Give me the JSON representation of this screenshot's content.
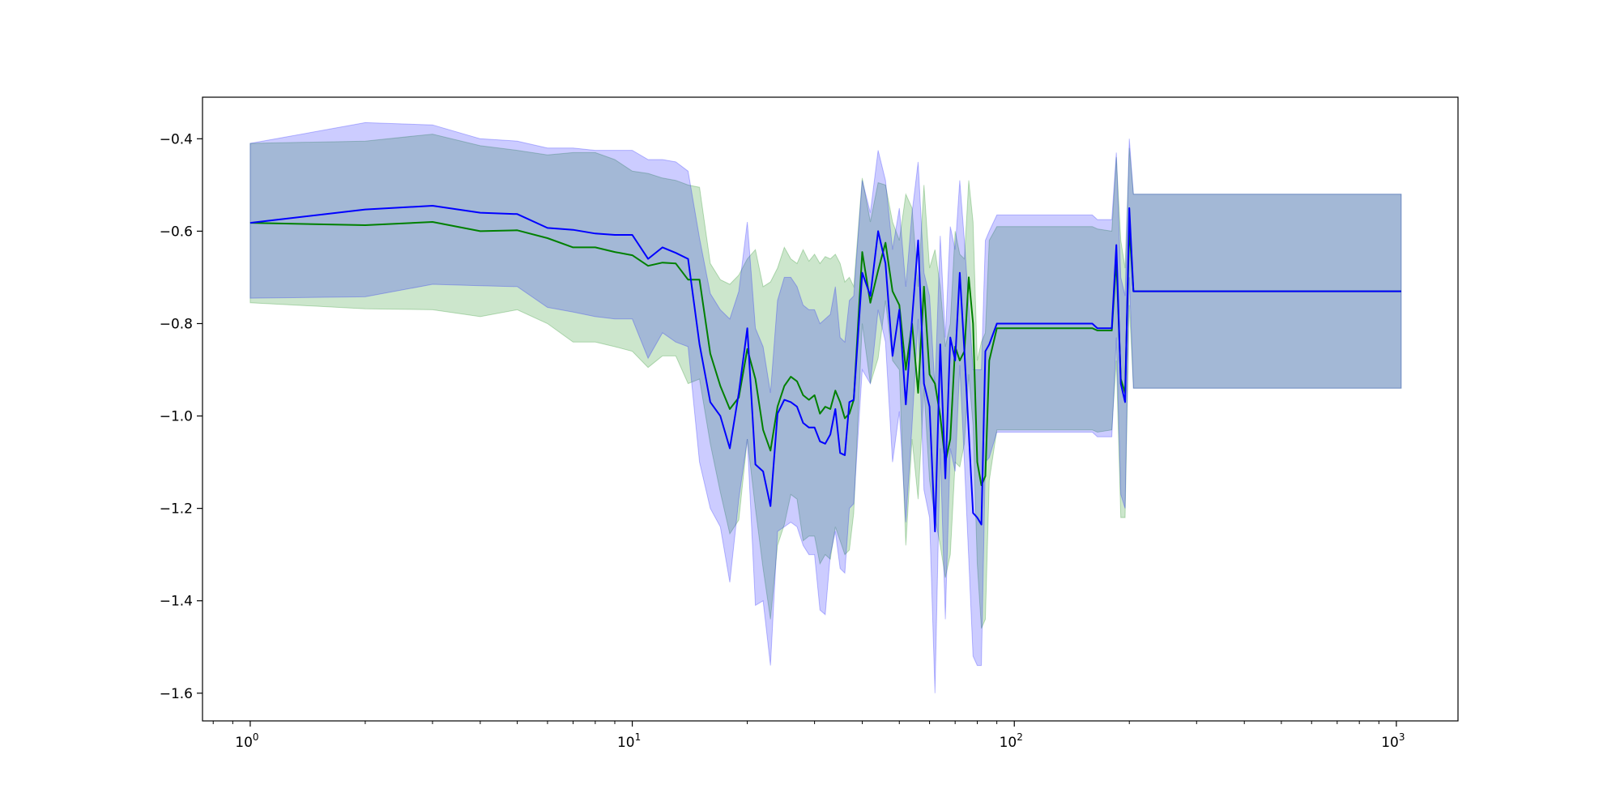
{
  "chart_data": {
    "type": "line",
    "title": "",
    "xlabel": "",
    "ylabel": "",
    "x_scale": "log",
    "xlim": [
      0.75,
      1450
    ],
    "ylim": [
      -1.66,
      -0.31
    ],
    "grid": false,
    "legend": "none",
    "x_ticks": [
      {
        "value": 1,
        "base": "10",
        "exp": "0"
      },
      {
        "value": 10,
        "base": "10",
        "exp": "1"
      },
      {
        "value": 100,
        "base": "10",
        "exp": "2"
      },
      {
        "value": 1000,
        "base": "10",
        "exp": "3"
      }
    ],
    "y_ticks": [
      {
        "value": -0.4,
        "label": "−0.4"
      },
      {
        "value": -0.6,
        "label": "−0.6"
      },
      {
        "value": -0.8,
        "label": "−0.8"
      },
      {
        "value": -1.0,
        "label": "−1.0"
      },
      {
        "value": -1.2,
        "label": "−1.2"
      },
      {
        "value": -1.4,
        "label": "−1.4"
      },
      {
        "value": -1.6,
        "label": "−1.6"
      }
    ],
    "series": [
      {
        "color": "#008000",
        "band_color": "#008000",
        "band_opacity": 0.2,
        "x": [
          1,
          2,
          3,
          4,
          5,
          6,
          7,
          8,
          9,
          10,
          11,
          12,
          13,
          14,
          15,
          16,
          17,
          18,
          19,
          20,
          21,
          22,
          23,
          24,
          25,
          26,
          27,
          28,
          29,
          30,
          31,
          32,
          33,
          34,
          35,
          36,
          37,
          38,
          40,
          42,
          44,
          46,
          48,
          50,
          52,
          54,
          56,
          58,
          60,
          62,
          64,
          66,
          68,
          70,
          72,
          74,
          76,
          78,
          80,
          82,
          84,
          86,
          90,
          100,
          120,
          150,
          160,
          165,
          180,
          185,
          190,
          195,
          200,
          205,
          300,
          500,
          1030
        ],
        "y": [
          -0.582,
          -0.587,
          -0.58,
          -0.6,
          -0.598,
          -0.615,
          -0.635,
          -0.635,
          -0.645,
          -0.652,
          -0.675,
          -0.668,
          -0.67,
          -0.705,
          -0.705,
          -0.865,
          -0.935,
          -0.985,
          -0.96,
          -0.855,
          -0.92,
          -1.03,
          -1.075,
          -0.98,
          -0.935,
          -0.915,
          -0.925,
          -0.955,
          -0.965,
          -0.955,
          -0.995,
          -0.98,
          -0.985,
          -0.945,
          -0.97,
          -1.005,
          -0.995,
          -0.965,
          -0.645,
          -0.755,
          -0.685,
          -0.625,
          -0.73,
          -0.76,
          -0.9,
          -0.8,
          -0.95,
          -0.72,
          -0.91,
          -0.93,
          -1.0,
          -1.1,
          -1.05,
          -0.85,
          -0.88,
          -0.86,
          -0.7,
          -0.8,
          -1.1,
          -1.15,
          -1.13,
          -0.88,
          -0.81,
          -0.81,
          -0.81,
          -0.81,
          -0.81,
          -0.815,
          -0.815,
          -0.66,
          -0.92,
          -0.95,
          -0.59,
          -0.73,
          -0.73,
          -0.73,
          -0.73
        ],
        "upper": [
          -0.41,
          -0.405,
          -0.39,
          -0.415,
          -0.425,
          -0.435,
          -0.43,
          -0.43,
          -0.445,
          -0.47,
          -0.475,
          -0.485,
          -0.49,
          -0.5,
          -0.505,
          -0.67,
          -0.705,
          -0.715,
          -0.695,
          -0.66,
          -0.64,
          -0.72,
          -0.71,
          -0.68,
          -0.635,
          -0.66,
          -0.67,
          -0.64,
          -0.665,
          -0.65,
          -0.67,
          -0.655,
          -0.66,
          -0.65,
          -0.67,
          -0.71,
          -0.7,
          -0.72,
          -0.485,
          -0.58,
          -0.495,
          -0.5,
          -0.58,
          -0.62,
          -0.52,
          -0.55,
          -0.72,
          -0.5,
          -0.68,
          -0.64,
          -0.72,
          -0.85,
          -0.8,
          -0.6,
          -0.65,
          -0.66,
          -0.49,
          -0.58,
          -0.88,
          -0.84,
          -0.82,
          -0.62,
          -0.59,
          -0.59,
          -0.59,
          -0.59,
          -0.59,
          -0.595,
          -0.6,
          -0.44,
          -0.62,
          -0.68,
          -0.42,
          -0.52,
          -0.52,
          -0.52,
          -0.52
        ],
        "lower": [
          -0.755,
          -0.768,
          -0.77,
          -0.785,
          -0.77,
          -0.8,
          -0.84,
          -0.84,
          -0.85,
          -0.86,
          -0.895,
          -0.87,
          -0.87,
          -0.93,
          -0.92,
          -1.06,
          -1.165,
          -1.255,
          -1.225,
          -1.05,
          -1.2,
          -1.33,
          -1.44,
          -1.28,
          -1.235,
          -1.17,
          -1.18,
          -1.27,
          -1.26,
          -1.26,
          -1.32,
          -1.3,
          -1.31,
          -1.24,
          -1.27,
          -1.3,
          -1.29,
          -1.21,
          -0.8,
          -0.93,
          -0.875,
          -0.75,
          -0.88,
          -0.9,
          -1.28,
          -1.05,
          -1.18,
          -0.94,
          -1.14,
          -1.22,
          -1.28,
          -1.35,
          -1.3,
          -1.1,
          -1.11,
          -1.06,
          -0.91,
          -1.02,
          -1.32,
          -1.46,
          -1.44,
          -1.14,
          -1.03,
          -1.03,
          -1.03,
          -1.03,
          -1.03,
          -1.035,
          -1.03,
          -0.88,
          -1.22,
          -1.22,
          -0.76,
          -0.94,
          -0.94,
          -0.94,
          -0.94
        ]
      },
      {
        "color": "#0000ff",
        "band_color": "#0000ff",
        "band_opacity": 0.2,
        "x": [
          1,
          2,
          3,
          4,
          5,
          6,
          7,
          8,
          9,
          10,
          11,
          12,
          13,
          14,
          15,
          16,
          17,
          18,
          19,
          20,
          21,
          22,
          23,
          24,
          25,
          26,
          27,
          28,
          29,
          30,
          31,
          32,
          33,
          34,
          35,
          36,
          37,
          38,
          40,
          42,
          44,
          46,
          48,
          50,
          52,
          54,
          56,
          58,
          60,
          62,
          64,
          66,
          68,
          70,
          72,
          74,
          76,
          78,
          80,
          82,
          84,
          86,
          90,
          100,
          120,
          150,
          160,
          165,
          180,
          185,
          190,
          195,
          200,
          205,
          300,
          500,
          1030
        ],
        "y": [
          -0.582,
          -0.553,
          -0.545,
          -0.56,
          -0.563,
          -0.593,
          -0.597,
          -0.605,
          -0.608,
          -0.608,
          -0.66,
          -0.635,
          -0.647,
          -0.66,
          -0.845,
          -0.97,
          -1.0,
          -1.07,
          -0.95,
          -0.81,
          -1.105,
          -1.12,
          -1.195,
          -0.995,
          -0.965,
          -0.97,
          -0.98,
          -1.015,
          -1.025,
          -1.025,
          -1.055,
          -1.06,
          -1.04,
          -0.985,
          -1.08,
          -1.085,
          -0.97,
          -0.965,
          -0.69,
          -0.74,
          -0.6,
          -0.67,
          -0.87,
          -0.77,
          -0.975,
          -0.79,
          -0.62,
          -0.93,
          -0.98,
          -1.25,
          -0.845,
          -1.135,
          -0.83,
          -0.88,
          -0.69,
          -0.86,
          -1.035,
          -1.21,
          -1.22,
          -1.235,
          -0.86,
          -0.845,
          -0.8,
          -0.8,
          -0.8,
          -0.8,
          -0.8,
          -0.81,
          -0.81,
          -0.63,
          -0.93,
          -0.97,
          -0.55,
          -0.73,
          -0.73,
          -0.73,
          -0.73
        ],
        "upper": [
          -0.41,
          -0.365,
          -0.37,
          -0.4,
          -0.405,
          -0.42,
          -0.42,
          -0.425,
          -0.425,
          -0.425,
          -0.445,
          -0.445,
          -0.45,
          -0.47,
          -0.615,
          -0.735,
          -0.77,
          -0.79,
          -0.73,
          -0.58,
          -0.81,
          -0.85,
          -0.95,
          -0.75,
          -0.7,
          -0.7,
          -0.72,
          -0.76,
          -0.77,
          -0.77,
          -0.8,
          -0.79,
          -0.78,
          -0.72,
          -0.83,
          -0.84,
          -0.75,
          -0.74,
          -0.49,
          -0.56,
          -0.425,
          -0.49,
          -0.64,
          -0.55,
          -0.72,
          -0.56,
          -0.45,
          -0.69,
          -0.74,
          -0.94,
          -0.61,
          -0.83,
          -0.59,
          -0.64,
          -0.49,
          -0.62,
          -0.76,
          -0.9,
          -0.9,
          -0.9,
          -0.62,
          -0.6,
          -0.565,
          -0.565,
          -0.565,
          -0.565,
          -0.565,
          -0.575,
          -0.575,
          -0.43,
          -0.7,
          -0.74,
          -0.4,
          -0.52,
          -0.52,
          -0.52,
          -0.52
        ],
        "lower": [
          -0.745,
          -0.742,
          -0.715,
          -0.718,
          -0.72,
          -0.765,
          -0.775,
          -0.785,
          -0.79,
          -0.79,
          -0.875,
          -0.82,
          -0.84,
          -0.85,
          -1.1,
          -1.2,
          -1.24,
          -1.36,
          -1.18,
          -1.05,
          -1.41,
          -1.4,
          -1.54,
          -1.25,
          -1.24,
          -1.23,
          -1.24,
          -1.28,
          -1.3,
          -1.3,
          -1.42,
          -1.43,
          -1.3,
          -1.25,
          -1.33,
          -1.34,
          -1.2,
          -1.19,
          -0.9,
          -0.93,
          -0.77,
          -0.84,
          -1.1,
          -0.99,
          -1.23,
          -1.02,
          -0.79,
          -1.16,
          -1.22,
          -1.6,
          -1.07,
          -1.44,
          -1.07,
          -1.12,
          -0.89,
          -1.1,
          -1.31,
          -1.52,
          -1.54,
          -1.54,
          -1.1,
          -1.09,
          -1.035,
          -1.035,
          -1.035,
          -1.035,
          -1.035,
          -1.045,
          -1.045,
          -0.83,
          -1.17,
          -1.2,
          -0.7,
          -0.94,
          -0.94,
          -0.94,
          -0.94
        ]
      }
    ]
  }
}
